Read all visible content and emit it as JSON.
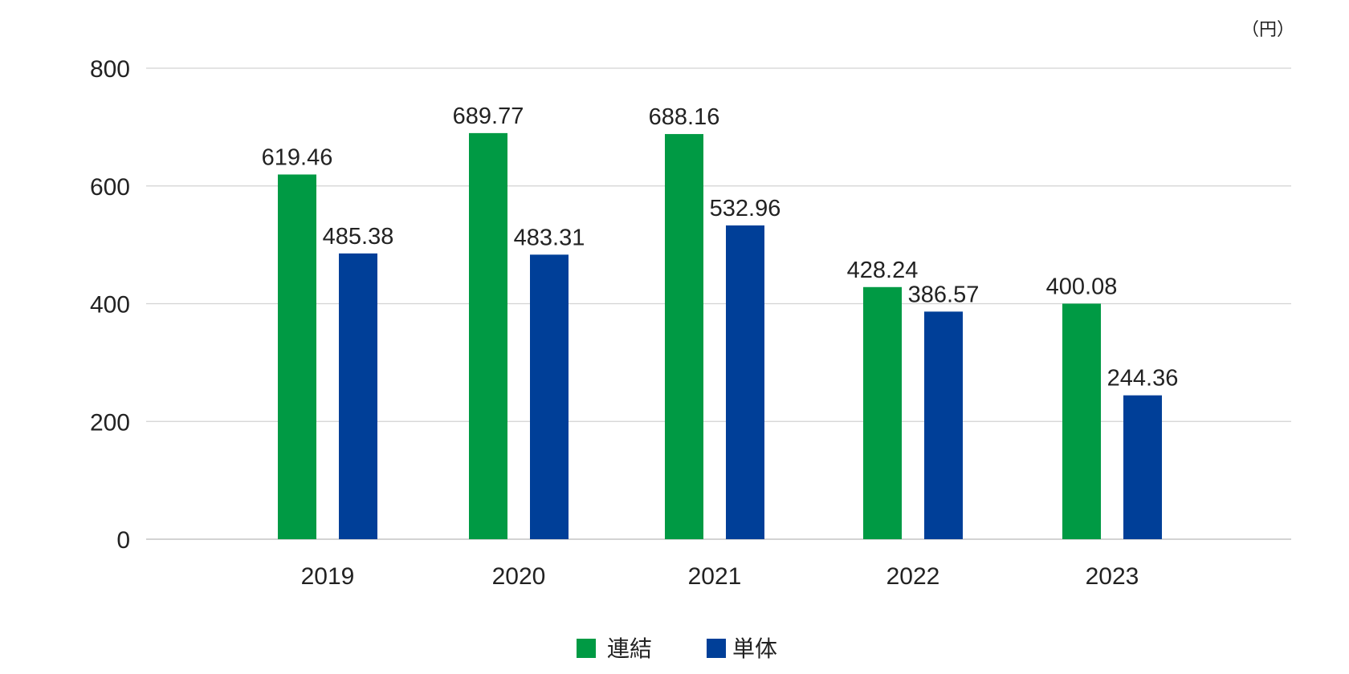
{
  "chart_data": {
    "type": "bar",
    "categories": [
      "2019",
      "2020",
      "2021",
      "2022",
      "2023"
    ],
    "series": [
      {
        "name": "連結",
        "color": "#009a44",
        "values": [
          619.46,
          689.77,
          688.16,
          428.24,
          400.08
        ]
      },
      {
        "name": "単体",
        "color": "#003f98",
        "values": [
          485.38,
          483.31,
          532.96,
          386.57,
          244.36
        ]
      }
    ],
    "data_labels": [
      [
        "619.46",
        "689.77",
        "688.16",
        "428.24",
        "400.08"
      ],
      [
        "485.38",
        "483.31",
        "532.96",
        "386.57",
        "244.36"
      ]
    ],
    "unit": "（円）",
    "ylim": [
      0,
      800
    ],
    "yticks": [
      "0",
      "200",
      "400",
      "600",
      "800"
    ],
    "grid": true,
    "legend_position": "bottom-center",
    "xlabel": "",
    "ylabel": ""
  }
}
